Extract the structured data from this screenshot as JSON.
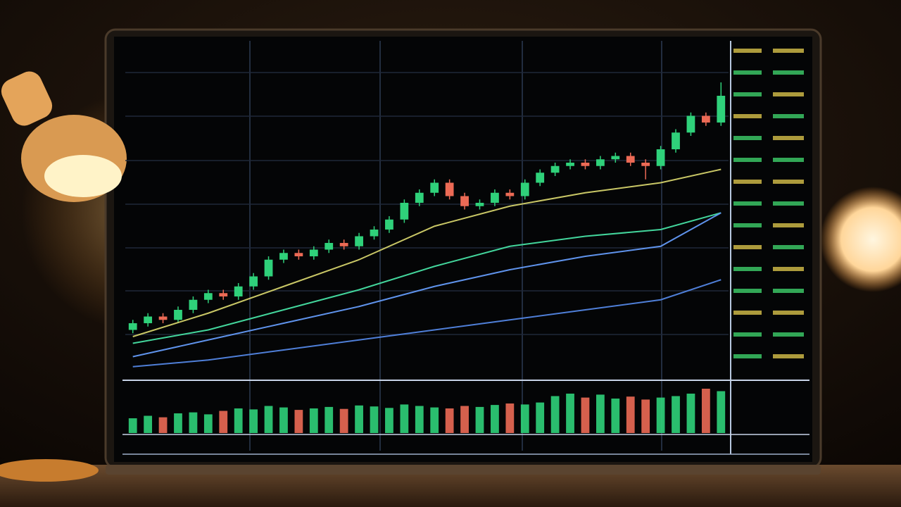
{
  "chart_data": {
    "type": "candlestick",
    "open": [
      14,
      16,
      18,
      17,
      20,
      23,
      25,
      24,
      27,
      30,
      35,
      37,
      36,
      38,
      40,
      39,
      42,
      44,
      47,
      52,
      55,
      58,
      54,
      51,
      52,
      55,
      54,
      58,
      61,
      63,
      64,
      63,
      65,
      66,
      64,
      63,
      68,
      73,
      78,
      76
    ],
    "high": [
      17,
      19,
      19,
      21,
      24,
      26,
      26,
      28,
      31,
      36,
      38,
      38,
      39,
      41,
      41,
      43,
      45,
      48,
      53,
      56,
      59,
      59,
      55,
      53,
      56,
      56,
      59,
      62,
      64,
      65,
      65,
      66,
      67,
      67,
      65,
      69,
      74,
      79,
      79,
      88
    ],
    "low": [
      13,
      15,
      16,
      16,
      19,
      22,
      23,
      23,
      26,
      29,
      34,
      35,
      35,
      37,
      38,
      38,
      41,
      43,
      46,
      51,
      54,
      53,
      50,
      50,
      51,
      53,
      53,
      57,
      60,
      62,
      62,
      62,
      64,
      63,
      59,
      62,
      67,
      72,
      75,
      75
    ],
    "close": [
      16,
      18,
      17,
      20,
      23,
      25,
      24,
      27,
      30,
      35,
      37,
      36,
      38,
      40,
      39,
      42,
      44,
      47,
      52,
      55,
      58,
      54,
      51,
      52,
      55,
      54,
      58,
      61,
      63,
      64,
      63,
      65,
      66,
      64,
      63,
      68,
      73,
      78,
      76,
      84
    ],
    "up_color": "#2fd17a",
    "down_color": "#ec6a55",
    "ylim": [
      0,
      100
    ],
    "xlim": [
      -0.5,
      39.5
    ],
    "lines": {
      "x": [
        0,
        5,
        10,
        15,
        20,
        25,
        30,
        35,
        39
      ],
      "series": [
        {
          "color": "#c9c766",
          "values": [
            12,
            19,
            27,
            35,
            45,
            51,
            55,
            58,
            62
          ]
        },
        {
          "color": "#43d69c",
          "values": [
            10,
            14,
            20,
            26,
            33,
            39,
            42,
            44,
            49
          ]
        },
        {
          "color": "#5f93ec",
          "values": [
            6,
            11,
            16,
            21,
            27,
            32,
            36,
            39,
            49
          ]
        },
        {
          "color": "#4f7fd8",
          "values": [
            3,
            5,
            8,
            11,
            14,
            17,
            20,
            23,
            29
          ]
        }
      ]
    },
    "volume": [
      30,
      35,
      32,
      40,
      42,
      38,
      45,
      50,
      48,
      55,
      52,
      47,
      50,
      53,
      49,
      56,
      54,
      51,
      58,
      55,
      52,
      50,
      55,
      53,
      57,
      60,
      58,
      62,
      75,
      80,
      72,
      78,
      70,
      74,
      68,
      72,
      75,
      80,
      90,
      85
    ],
    "volume_ylim": [
      0,
      100
    ],
    "grid": true
  }
}
